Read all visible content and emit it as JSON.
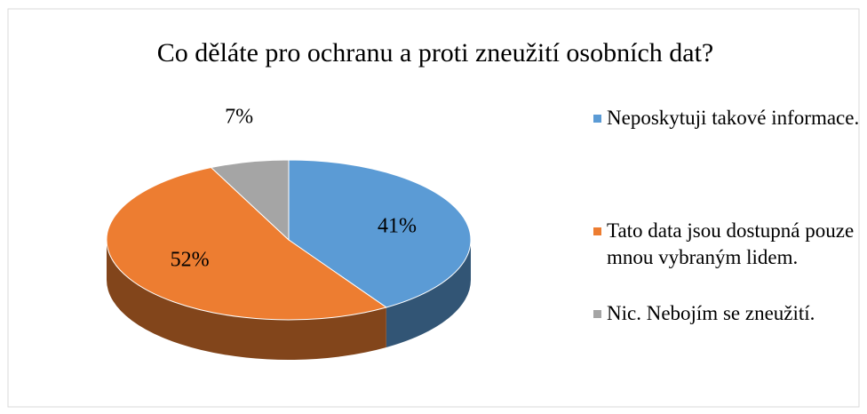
{
  "chart_data": {
    "type": "pie",
    "title": "Co děláte pro ochranu a proti zneužití osobních dat?",
    "categories": [
      "Neposkytuji takové informace.",
      "Tato data jsou dostupná pouze mnou vybraným lidem.",
      "Nic. Nebojím se zneužití."
    ],
    "values": [
      41,
      52,
      7
    ],
    "value_labels": [
      "41%",
      "52%",
      "7%"
    ],
    "colors": [
      "#5b9bd5",
      "#ed7d31",
      "#a5a5a5"
    ],
    "legend": "right"
  }
}
